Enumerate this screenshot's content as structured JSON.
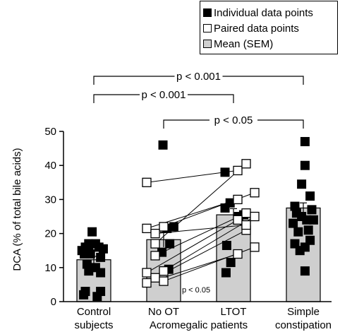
{
  "legend": {
    "individual": "Individual data points",
    "paired": "Paired data points",
    "mean": "Mean (SEM)"
  },
  "colors": {
    "individual": "#000000",
    "paired": "#ffffff",
    "bar": "#cfcfcf"
  },
  "chart_data": {
    "type": "bar",
    "ylabel": "DCA (% of total bile acids)",
    "ylim": [
      0,
      50
    ],
    "yticks": [
      0,
      10,
      20,
      30,
      40,
      50
    ],
    "grid": false,
    "legend_position": "top-right",
    "categories": [
      {
        "line1": "Control",
        "line2": "subjects"
      },
      {
        "line1": "No OT",
        "line2": ""
      },
      {
        "line1": "LTOT",
        "line2": ""
      },
      {
        "line1": "Simple",
        "line2": "constipation"
      }
    ],
    "group_label": "Acromegalic patients",
    "means": [
      12.3,
      18.2,
      25.5,
      27.5
    ],
    "sem": [
      1.0,
      2.2,
      1.8,
      1.5
    ],
    "individual_points": [
      [
        [
          -0.35,
          15
        ],
        [
          -0.25,
          16
        ],
        [
          -0.15,
          17
        ],
        [
          -0.05,
          20.5
        ],
        [
          0.05,
          17
        ],
        [
          0.15,
          16
        ],
        [
          0.28,
          15.5
        ],
        [
          -0.28,
          14
        ],
        [
          -0.1,
          14
        ],
        [
          0.2,
          13
        ],
        [
          -0.2,
          11
        ],
        [
          0.05,
          10
        ],
        [
          -0.15,
          9
        ],
        [
          0.2,
          8.5
        ],
        [
          -0.25,
          3
        ],
        [
          0.2,
          3
        ],
        [
          -0.3,
          2
        ],
        [
          0.1,
          1.5
        ],
        [
          -0.15,
          16
        ]
      ],
      [
        [
          -0.02,
          46
        ],
        [
          0.3,
          22
        ],
        [
          0.1,
          21.5
        ],
        [
          0.18,
          17
        ],
        [
          -0.05,
          14.5
        ],
        [
          0.15,
          9.5
        ]
      ],
      [
        [
          -0.25,
          38
        ],
        [
          -0.1,
          29
        ],
        [
          -0.25,
          27.5
        ],
        [
          0.3,
          25.5
        ],
        [
          -0.2,
          16.5
        ],
        [
          -0.08,
          11.5
        ],
        [
          -0.22,
          8.5
        ],
        [
          0.15,
          25
        ]
      ],
      [
        [
          0.05,
          47
        ],
        [
          0.05,
          40
        ],
        [
          -0.05,
          34.5
        ],
        [
          0.2,
          31
        ],
        [
          -0.25,
          28
        ],
        [
          0.25,
          27
        ],
        [
          -0.2,
          26
        ],
        [
          -0.05,
          25
        ],
        [
          0.1,
          24
        ],
        [
          0.3,
          24
        ],
        [
          -0.3,
          23
        ],
        [
          -0.15,
          20.5
        ],
        [
          0.15,
          21
        ],
        [
          -0.25,
          17
        ],
        [
          0.05,
          16
        ],
        [
          0.2,
          18
        ],
        [
          -0.1,
          15
        ],
        [
          0.05,
          9
        ]
      ]
    ],
    "paired_points": [
      {
        "before": 35,
        "after": 38.5
      },
      {
        "before": 17,
        "after": 40.5
      },
      {
        "before": 22,
        "after": 32
      },
      {
        "before": 21.5,
        "after": 30
      },
      {
        "before": 13.5,
        "after": 26
      },
      {
        "before": 9,
        "after": 25
      },
      {
        "before": 8.5,
        "after": 24
      },
      {
        "before": 7,
        "after": 21
      },
      {
        "before": 6,
        "after": 16
      },
      {
        "before": 5.5,
        "after": 14
      },
      {
        "before": 20,
        "after": 22.5
      }
    ],
    "significance": [
      {
        "from": 0,
        "to": 3,
        "label": "p < 0.001",
        "level": 2
      },
      {
        "from": 0,
        "to": 2,
        "label": "p < 0.001",
        "level": 1
      },
      {
        "from": 1,
        "to": 3,
        "label": "p < 0.05",
        "level": 0
      }
    ],
    "inset_label": "p < 0.05"
  }
}
